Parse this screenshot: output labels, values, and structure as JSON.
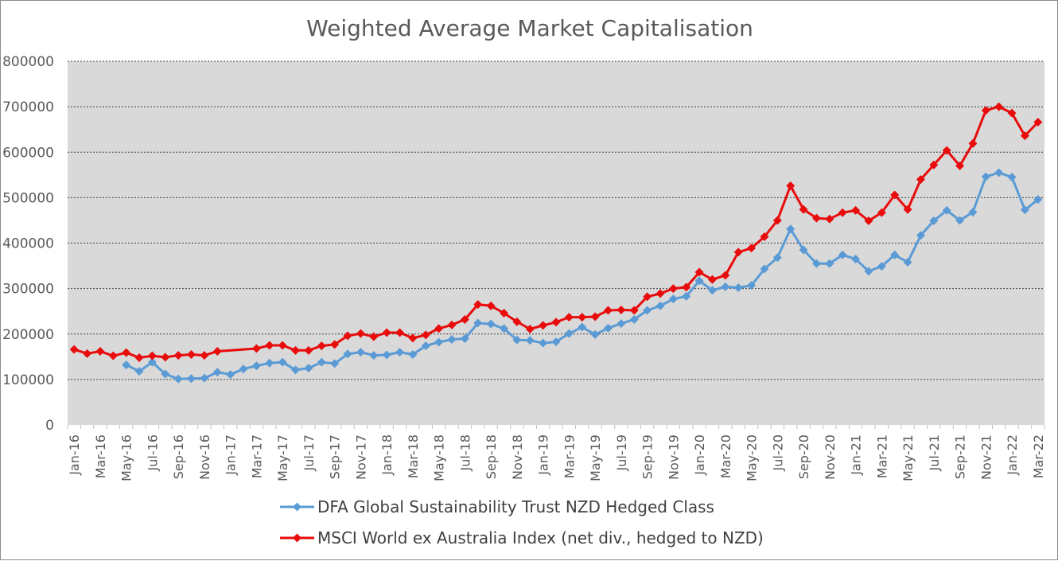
{
  "chart_data": {
    "type": "line",
    "title": "Weighted Average Market Capitalisation",
    "xlabel": "",
    "ylabel": "",
    "ylim": [
      0,
      800000
    ],
    "yticks": [
      0,
      100000,
      200000,
      300000,
      400000,
      500000,
      600000,
      700000,
      800000
    ],
    "ytick_labels": [
      "0",
      "100000",
      "200000",
      "300000",
      "400000",
      "500000",
      "600000",
      "700000",
      "800000"
    ],
    "grid": true,
    "legend_position": "bottom",
    "plot_background": "#d9d9d9",
    "categories": [
      "Jan-16",
      "Feb-16",
      "Mar-16",
      "Apr-16",
      "May-16",
      "Jun-16",
      "Jul-16",
      "Aug-16",
      "Sep-16",
      "Oct-16",
      "Nov-16",
      "Dec-16",
      "Jan-17",
      "Feb-17",
      "Mar-17",
      "Apr-17",
      "May-17",
      "Jun-17",
      "Jul-17",
      "Aug-17",
      "Sep-17",
      "Oct-17",
      "Nov-17",
      "Dec-17",
      "Jan-18",
      "Feb-18",
      "Mar-18",
      "Apr-18",
      "May-18",
      "Jun-18",
      "Jul-18",
      "Aug-18",
      "Sep-18",
      "Oct-18",
      "Nov-18",
      "Dec-18",
      "Jan-19",
      "Feb-19",
      "Mar-19",
      "Apr-19",
      "May-19",
      "Jun-19",
      "Jul-19",
      "Aug-19",
      "Sep-19",
      "Oct-19",
      "Nov-19",
      "Dec-19",
      "Jan-20",
      "Feb-20",
      "Mar-20",
      "Apr-20",
      "May-20",
      "Jun-20",
      "Jul-20",
      "Aug-20",
      "Sep-20",
      "Oct-20",
      "Nov-20",
      "Dec-20",
      "Jan-21",
      "Feb-21",
      "Mar-21",
      "Apr-21",
      "May-21",
      "Jun-21",
      "Jul-21",
      "Aug-21",
      "Sep-21",
      "Oct-21",
      "Nov-21",
      "Dec-21",
      "Jan-22",
      "Feb-22",
      "Mar-22"
    ],
    "xtick_labels": [
      "Jan-16",
      "Mar-16",
      "May-16",
      "Jul-16",
      "Sep-16",
      "Nov-16",
      "Jan-17",
      "Mar-17",
      "May-17",
      "Jul-17",
      "Sep-17",
      "Nov-17",
      "Jan-18",
      "Mar-18",
      "May-18",
      "Jul-18",
      "Sep-18",
      "Nov-18",
      "Jan-19",
      "Mar-19",
      "May-19",
      "Jul-19",
      "Sep-19",
      "Nov-19",
      "Jan-20",
      "Mar-20",
      "May-20",
      "Jul-20",
      "Sep-20",
      "Nov-20",
      "Jan-21",
      "Mar-21",
      "May-21",
      "Jul-21",
      "Sep-21",
      "Nov-21",
      "Jan-22",
      "Mar-22"
    ],
    "series": [
      {
        "name": "DFA Global Sustainability Trust NZD Hedged Class",
        "color": "#5b9bd5",
        "marker": "diamond",
        "values": [
          null,
          null,
          null,
          null,
          132000,
          118000,
          138000,
          112000,
          101000,
          102000,
          103000,
          116000,
          111000,
          123000,
          130000,
          136000,
          138000,
          121000,
          125000,
          138000,
          135000,
          156000,
          160000,
          153000,
          154000,
          160000,
          155000,
          174000,
          182000,
          188000,
          190000,
          224000,
          222000,
          212000,
          187000,
          186000,
          180000,
          183000,
          201000,
          215000,
          199000,
          213000,
          223000,
          232000,
          252000,
          262000,
          277000,
          283000,
          317000,
          296000,
          304000,
          302000,
          307000,
          343000,
          368000,
          431000,
          385000,
          355000,
          355000,
          374000,
          365000,
          338000,
          349000,
          374000,
          358000,
          417000,
          449000,
          472000,
          450000,
          468000,
          546000,
          555000,
          545000,
          473000,
          496000
        ]
      },
      {
        "name": "MSCI World ex Australia Index (net div., hedged to NZD)",
        "color": "#e80c0c",
        "marker": "diamond",
        "values": [
          166000,
          157000,
          162000,
          152000,
          159000,
          148000,
          152000,
          149000,
          153000,
          155000,
          153000,
          162000,
          null,
          null,
          168000,
          175000,
          175000,
          164000,
          164000,
          174000,
          177000,
          196000,
          201000,
          194000,
          203000,
          203000,
          191000,
          198000,
          212000,
          220000,
          232000,
          265000,
          262000,
          246000,
          227000,
          211000,
          219000,
          226000,
          237000,
          237000,
          238000,
          252000,
          253000,
          252000,
          282000,
          289000,
          300000,
          303000,
          336000,
          320000,
          329000,
          380000,
          389000,
          414000,
          450000,
          526000,
          474000,
          455000,
          453000,
          467000,
          472000,
          449000,
          467000,
          506000,
          474000,
          540000,
          572000,
          604000,
          570000,
          619000,
          692000,
          700000,
          686000,
          636000,
          666000
        ]
      }
    ]
  }
}
